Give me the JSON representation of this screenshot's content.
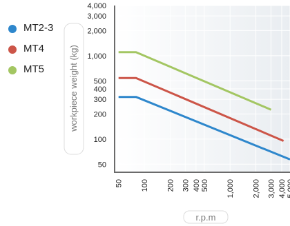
{
  "chart_data": {
    "type": "line",
    "xlabel": "r.p.m",
    "ylabel": "workpiece weight (kg)",
    "x_scale": "log",
    "y_scale": "log",
    "x_ticks": [
      50,
      100,
      200,
      300,
      400,
      500,
      1000,
      2000,
      3000,
      4000,
      5000
    ],
    "x_tick_labels": [
      "50",
      "100",
      "200",
      "300",
      "400",
      "500",
      "1,000",
      "2,000",
      "3,000",
      "4,000",
      "5,000"
    ],
    "y_ticks": [
      50,
      100,
      200,
      300,
      400,
      500,
      1000,
      2000,
      3000,
      4000
    ],
    "y_tick_labels": [
      "50",
      "100",
      "200",
      "300",
      "400",
      "500",
      "1,000",
      "2,000",
      "3,000",
      "4,000"
    ],
    "xlim": [
      45,
      5000
    ],
    "ylim": [
      40,
      4000
    ],
    "legend_position": "top-left",
    "series": [
      {
        "name": "MT2-3",
        "color": "#2e87cc",
        "x": [
          50,
          80,
          5000
        ],
        "y": [
          320,
          320,
          57
        ]
      },
      {
        "name": "MT4",
        "color": "#cc5548",
        "x": [
          50,
          80,
          4200
        ],
        "y": [
          540,
          540,
          95
        ]
      },
      {
        "name": "MT5",
        "color": "#a3c662",
        "x": [
          50,
          80,
          3000
        ],
        "y": [
          1100,
          1100,
          225
        ]
      }
    ]
  },
  "colors": {
    "plot_background": "#eef1f4",
    "axis": "#6b6b6b"
  }
}
